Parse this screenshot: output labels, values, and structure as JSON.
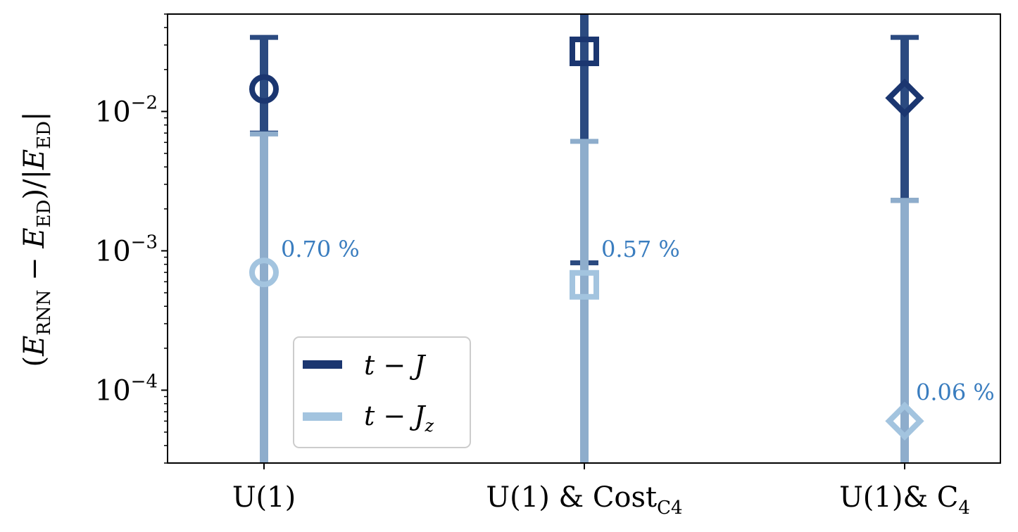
{
  "chart_data": {
    "type": "scatter",
    "yscale": "log",
    "ylim": [
      3e-05,
      0.05
    ],
    "ylabel": "(E_RNN − E_ED)/|E_ED|",
    "ytick_values": [
      0.0001,
      0.001,
      0.01
    ],
    "ytick_labels": [
      "10",
      "10",
      "10"
    ],
    "ytick_exponents": [
      "−4",
      "−3",
      "−2"
    ],
    "categories": [
      "U(1)",
      "U(1) & Cost_C4",
      "U(1)& C4"
    ],
    "category_labels": {
      "c0": {
        "main": "U(1)"
      },
      "c1": {
        "main": "U(1) & Cost",
        "sub": "C4"
      },
      "c2": {
        "main": "U(1)& C",
        "sub": "4"
      }
    },
    "series": [
      {
        "name": "t − J",
        "color": "#1b3670",
        "bar_color": "#2b4a80",
        "markers": [
          "circle",
          "square",
          "diamond"
        ],
        "values": [
          0.0145,
          0.027,
          0.0125
        ],
        "err_low": [
          0.007,
          0.00082,
          0.0023
        ],
        "err_high": [
          0.034,
          0.06,
          0.034
        ]
      },
      {
        "name": "t − J_z",
        "color": "#a3c4df",
        "bar_color": "#8eadcc",
        "markers": [
          "circle",
          "square",
          "diamond"
        ],
        "values": [
          0.0007,
          0.00057,
          6e-05
        ],
        "err_low": [
          2e-05,
          2e-05,
          2e-05
        ],
        "err_high": [
          0.0069,
          0.0061,
          0.0023
        ]
      }
    ],
    "annotations": [
      "0.70 %",
      "0.57 %",
      "0.06 %"
    ],
    "legend": {
      "position": "lower-left",
      "entries": [
        {
          "main": "t − J",
          "sub": ""
        },
        {
          "main": "t − J",
          "sub": "z"
        }
      ]
    },
    "grid": false
  }
}
